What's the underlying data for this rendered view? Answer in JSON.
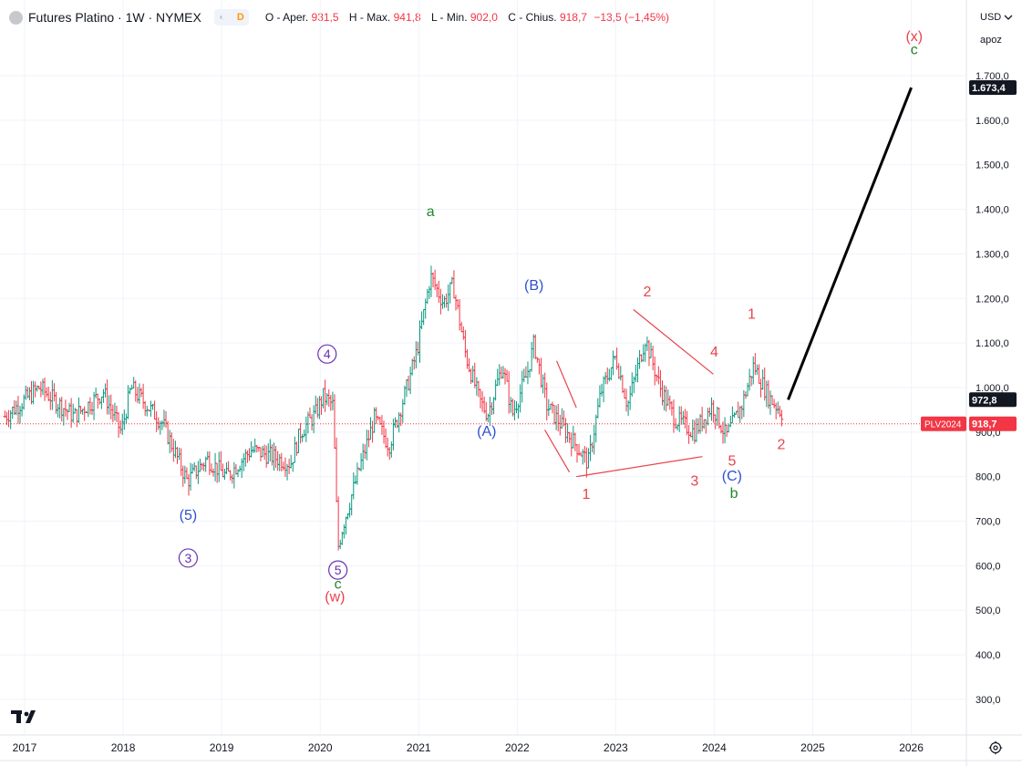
{
  "header": {
    "title": "Futures Platino · 1W · NYMEX",
    "badge_d": "D",
    "open_label": "O - Aper.",
    "open": "931,5",
    "high_label": "H - Max.",
    "high": "941,8",
    "low_label": "L - Min.",
    "low": "902,0",
    "close_label": "C - Chius.",
    "close": "918,7",
    "change": "−13,5 (−1,45%)"
  },
  "side": {
    "currency": "USD",
    "currency_chevron": "chevron-down-icon",
    "scale_mode": "apoz"
  },
  "colors": {
    "up": "#089981",
    "down": "#f23645",
    "red_label": "#e8434b",
    "blue_label": "#2e50d0",
    "green_label": "#22862f",
    "purple_label": "#6a2fb0"
  },
  "price_tags": {
    "target": "1.673,4",
    "line_end": "972,8",
    "symbol": "PLV2024",
    "last": "918,7"
  },
  "chart_data": {
    "type": "ohlc",
    "interval": "1W",
    "y_ticks": [
      "300,0",
      "400,0",
      "500,0",
      "600,0",
      "700,0",
      "800,0",
      "900,0",
      "1.000,0",
      "1.100,0",
      "1.200,0",
      "1.300,0",
      "1.400,0",
      "1.500,0",
      "1.600,0",
      "1.700,0"
    ],
    "y_tick_values": [
      300,
      400,
      500,
      600,
      700,
      800,
      900,
      1000,
      1100,
      1200,
      1300,
      1400,
      1500,
      1600,
      1700
    ],
    "ylim": [
      220,
      1870
    ],
    "x_ticks": [
      "2017",
      "2018",
      "2019",
      "2020",
      "2021",
      "2022",
      "2023",
      "2024",
      "2025",
      "2026"
    ],
    "x_tick_values": [
      2017,
      2018,
      2019,
      2020,
      2021,
      2022,
      2023,
      2024,
      2025,
      2026
    ],
    "xlim": [
      2016.75,
      2026.55
    ],
    "grid": true,
    "anchors": [
      {
        "t": 2016.8,
        "p": 935
      },
      {
        "t": 2017.15,
        "p": 1000
      },
      {
        "t": 2017.5,
        "p": 935
      },
      {
        "t": 2017.8,
        "p": 990
      },
      {
        "t": 2017.98,
        "p": 900
      },
      {
        "t": 2018.08,
        "p": 1000
      },
      {
        "t": 2018.4,
        "p": 920
      },
      {
        "t": 2018.65,
        "p": 790
      },
      {
        "t": 2018.85,
        "p": 840
      },
      {
        "t": 2019.05,
        "p": 800
      },
      {
        "t": 2019.3,
        "p": 860
      },
      {
        "t": 2019.45,
        "p": 850
      },
      {
        "t": 2019.7,
        "p": 830
      },
      {
        "t": 2019.8,
        "p": 900
      },
      {
        "t": 2019.95,
        "p": 940
      },
      {
        "t": 2020.03,
        "p": 980
      },
      {
        "t": 2020.13,
        "p": 960
      },
      {
        "t": 2020.18,
        "p": 640
      },
      {
        "t": 2020.23,
        "p": 690
      },
      {
        "t": 2020.4,
        "p": 820
      },
      {
        "t": 2020.55,
        "p": 930
      },
      {
        "t": 2020.7,
        "p": 870
      },
      {
        "t": 2020.88,
        "p": 1000
      },
      {
        "t": 2020.98,
        "p": 1080
      },
      {
        "t": 2021.12,
        "p": 1250
      },
      {
        "t": 2021.25,
        "p": 1190
      },
      {
        "t": 2021.35,
        "p": 1230
      },
      {
        "t": 2021.48,
        "p": 1070
      },
      {
        "t": 2021.62,
        "p": 970
      },
      {
        "t": 2021.7,
        "p": 940
      },
      {
        "t": 2021.85,
        "p": 1050
      },
      {
        "t": 2021.95,
        "p": 940
      },
      {
        "t": 2022.1,
        "p": 1030
      },
      {
        "t": 2022.17,
        "p": 1100
      },
      {
        "t": 2022.3,
        "p": 960
      },
      {
        "t": 2022.5,
        "p": 900
      },
      {
        "t": 2022.63,
        "p": 860
      },
      {
        "t": 2022.72,
        "p": 830
      },
      {
        "t": 2022.85,
        "p": 990
      },
      {
        "t": 2023.0,
        "p": 1070
      },
      {
        "t": 2023.12,
        "p": 960
      },
      {
        "t": 2023.3,
        "p": 1110
      },
      {
        "t": 2023.45,
        "p": 1000
      },
      {
        "t": 2023.6,
        "p": 930
      },
      {
        "t": 2023.8,
        "p": 900
      },
      {
        "t": 2023.98,
        "p": 960
      },
      {
        "t": 2024.12,
        "p": 890
      },
      {
        "t": 2024.28,
        "p": 960
      },
      {
        "t": 2024.4,
        "p": 1050
      },
      {
        "t": 2024.55,
        "p": 980
      },
      {
        "t": 2024.7,
        "p": 940
      }
    ],
    "projection": [
      {
        "t": 2024.75,
        "p": 972.8
      },
      {
        "t": 2026.0,
        "p": 1673.4
      }
    ],
    "reference_line": 918.7,
    "trend_lines": [
      {
        "from": {
          "t": 2022.4,
          "p": 1060
        },
        "to": {
          "t": 2022.6,
          "p": 955
        }
      },
      {
        "from": {
          "t": 2022.28,
          "p": 905
        },
        "to": {
          "t": 2022.53,
          "p": 810
        }
      },
      {
        "from": {
          "t": 2022.6,
          "p": 800
        },
        "to": {
          "t": 2023.88,
          "p": 845
        }
      },
      {
        "from": {
          "t": 2023.18,
          "p": 1175
        },
        "to": {
          "t": 2023.99,
          "p": 1030
        }
      }
    ],
    "wave_labels": [
      {
        "text": "a",
        "t": 2021.12,
        "p": 1385,
        "color": "green"
      },
      {
        "text": "(5)",
        "t": 2018.66,
        "p": 703,
        "color": "blue"
      },
      {
        "text": "3",
        "t": 2018.66,
        "p": 605,
        "color": "purple",
        "circled": true
      },
      {
        "text": "4",
        "t": 2020.07,
        "p": 1063,
        "color": "purple",
        "circled": true
      },
      {
        "text": "5",
        "t": 2020.18,
        "p": 578,
        "color": "purple",
        "circled": true
      },
      {
        "text": "c",
        "t": 2020.18,
        "p": 549,
        "color": "green"
      },
      {
        "text": "(w)",
        "t": 2020.15,
        "p": 520,
        "color": "red"
      },
      {
        "text": "(A)",
        "t": 2021.69,
        "p": 891,
        "color": "blue"
      },
      {
        "text": "(B)",
        "t": 2022.17,
        "p": 1219,
        "color": "blue"
      },
      {
        "text": "1",
        "t": 2022.7,
        "p": 750,
        "color": "red"
      },
      {
        "text": "2",
        "t": 2023.32,
        "p": 1205,
        "color": "red"
      },
      {
        "text": "3",
        "t": 2023.8,
        "p": 780,
        "color": "red"
      },
      {
        "text": "4",
        "t": 2024.0,
        "p": 1070,
        "color": "red"
      },
      {
        "text": "5",
        "t": 2024.18,
        "p": 825,
        "color": "red"
      },
      {
        "text": "(C)",
        "t": 2024.18,
        "p": 791,
        "color": "blue"
      },
      {
        "text": "b",
        "t": 2024.2,
        "p": 752,
        "color": "green"
      },
      {
        "text": "1",
        "t": 2024.38,
        "p": 1155,
        "color": "red"
      },
      {
        "text": "2",
        "t": 2024.68,
        "p": 862,
        "color": "red"
      },
      {
        "text": "(x)",
        "t": 2026.03,
        "p": 1778,
        "color": "red"
      },
      {
        "text": "c",
        "t": 2026.03,
        "p": 1748,
        "color": "green"
      }
    ]
  }
}
